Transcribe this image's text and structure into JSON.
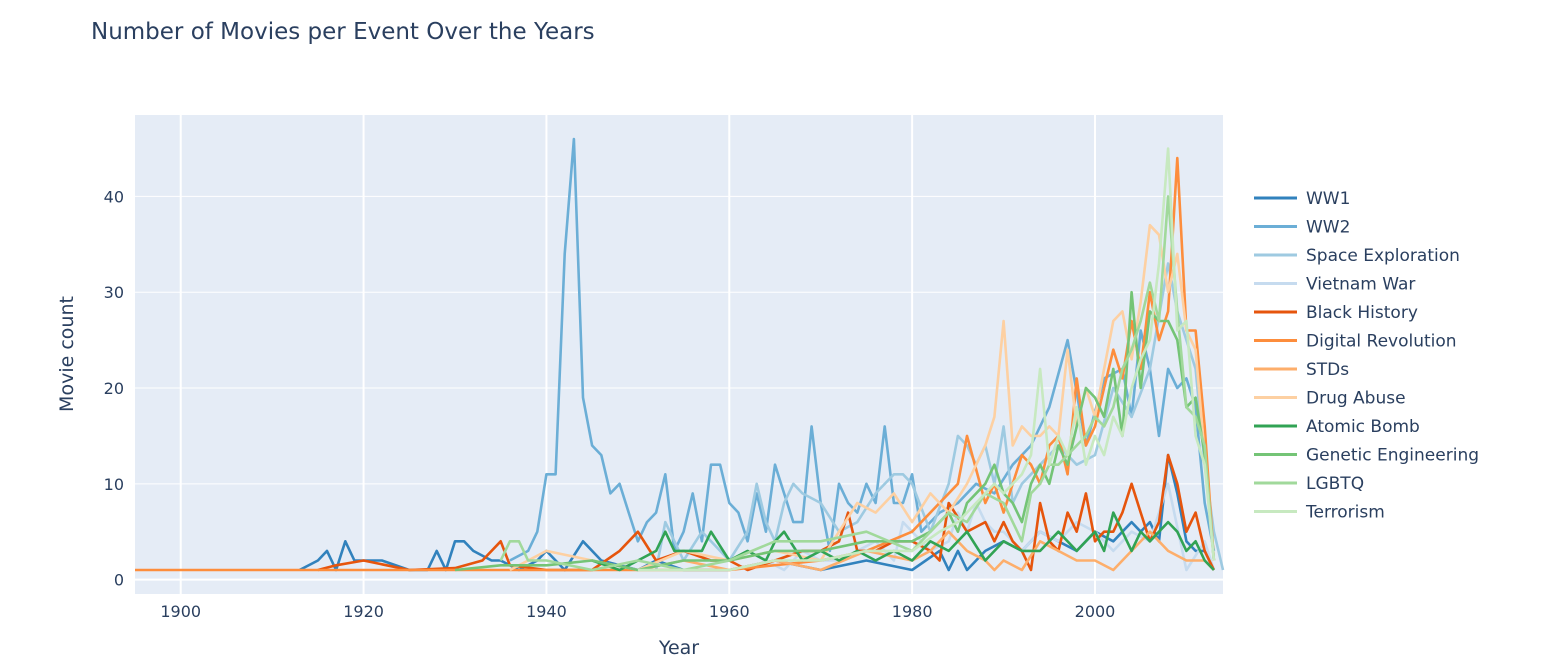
{
  "chart_data": {
    "type": "line",
    "title": "Number of Movies per Event Over the Years",
    "xlabel": "Year",
    "ylabel": "Movie count",
    "xlim": [
      1895,
      2014
    ],
    "ylim": [
      -1.5,
      48.5
    ],
    "x_ticks": [
      1900,
      1920,
      1940,
      1960,
      1980,
      2000
    ],
    "y_ticks": [
      0,
      10,
      20,
      30,
      40
    ],
    "grid": true,
    "legend_position": "right",
    "plot_bg": "#e5ecf6",
    "series": [
      {
        "name": "WW1",
        "color": "#3182bd",
        "x": [
          1913,
          1915,
          1916,
          1917,
          1918,
          1919,
          1920,
          1921,
          1922,
          1925,
          1927,
          1928,
          1929,
          1930,
          1931,
          1932,
          1934,
          1935,
          1937,
          1939,
          1940,
          1942,
          1944,
          1946,
          1950,
          1952,
          1955,
          1960,
          1965,
          1970,
          1975,
          1980,
          1983,
          1984,
          1985,
          1986,
          1987,
          1988,
          1990,
          1992,
          1994,
          1996,
          1998,
          2000,
          2002,
          2003,
          2004,
          2005,
          2006,
          2007,
          2008,
          2009,
          2010,
          2011,
          2012,
          2013
        ],
        "y": [
          1,
          2,
          3,
          1,
          4,
          2,
          2,
          2,
          2,
          1,
          1,
          3,
          1,
          4,
          4,
          3,
          2,
          2,
          1,
          2,
          3,
          1,
          4,
          2,
          1,
          2,
          1,
          1,
          2,
          1,
          2,
          1,
          3,
          1,
          3,
          1,
          2,
          3,
          4,
          3,
          5,
          4,
          3,
          5,
          4,
          5,
          6,
          5,
          6,
          4,
          13,
          9,
          4,
          3,
          3,
          1
        ]
      },
      {
        "name": "WW2",
        "color": "#6baed6",
        "x": [
          1936,
          1938,
          1939,
          1940,
          1941,
          1942,
          1943,
          1944,
          1945,
          1946,
          1947,
          1948,
          1949,
          1950,
          1951,
          1952,
          1953,
          1954,
          1955,
          1956,
          1957,
          1958,
          1959,
          1960,
          1961,
          1962,
          1963,
          1964,
          1965,
          1966,
          1967,
          1968,
          1969,
          1970,
          1971,
          1972,
          1973,
          1974,
          1975,
          1976,
          1977,
          1978,
          1979,
          1980,
          1981,
          1982,
          1983,
          1985,
          1987,
          1989,
          1991,
          1993,
          1995,
          1997,
          1999,
          2001,
          2003,
          2004,
          2005,
          2006,
          2007,
          2008,
          2009,
          2010,
          2011,
          2012,
          2013
        ],
        "y": [
          2,
          3,
          5,
          11,
          11,
          34,
          46,
          19,
          14,
          13,
          9,
          10,
          7,
          4,
          6,
          7,
          11,
          3,
          5,
          9,
          4,
          12,
          12,
          8,
          7,
          4,
          9,
          5,
          12,
          9,
          6,
          6,
          16,
          8,
          3,
          10,
          8,
          7,
          10,
          8,
          16,
          8,
          8,
          11,
          5,
          6,
          7,
          8,
          10,
          9,
          12,
          14,
          18,
          25,
          14,
          21,
          22,
          17,
          26,
          22,
          15,
          22,
          20,
          21,
          18,
          8,
          3
        ]
      },
      {
        "name": "Space Exploration",
        "color": "#9ecae1",
        "x": [
          1952,
          1953,
          1955,
          1957,
          1960,
          1962,
          1963,
          1964,
          1965,
          1966,
          1967,
          1968,
          1970,
          1972,
          1974,
          1976,
          1978,
          1979,
          1980,
          1982,
          1984,
          1985,
          1986,
          1987,
          1988,
          1989,
          1990,
          1991,
          1992,
          1994,
          1996,
          1998,
          2000,
          2002,
          2004,
          2006,
          2008,
          2009,
          2010,
          2011,
          2012,
          2013,
          2014
        ],
        "y": [
          1,
          6,
          2,
          5,
          2,
          5,
          10,
          6,
          4,
          8,
          10,
          9,
          8,
          5,
          6,
          9,
          11,
          11,
          10,
          5,
          10,
          15,
          14,
          12,
          14,
          10,
          16,
          8,
          10,
          12,
          14,
          12,
          13,
          20,
          17,
          22,
          33,
          28,
          25,
          22,
          12,
          5,
          1
        ]
      },
      {
        "name": "Vietnam War",
        "color": "#c6dbef",
        "x": [
          1962,
          1964,
          1966,
          1968,
          1970,
          1972,
          1974,
          1976,
          1978,
          1979,
          1980,
          1982,
          1984,
          1985,
          1986,
          1987,
          1988,
          1989,
          1990,
          1992,
          1994,
          1996,
          1998,
          2000,
          2002,
          2004,
          2006,
          2008,
          2010,
          2012,
          2013
        ],
        "y": [
          1,
          2,
          1,
          3,
          2,
          2,
          3,
          4,
          2,
          6,
          5,
          3,
          4,
          7,
          5,
          8,
          6,
          5,
          5,
          3,
          5,
          4,
          6,
          5,
          3,
          5,
          4,
          10,
          1,
          4,
          1
        ]
      },
      {
        "name": "Black History",
        "color": "#e6550d",
        "x": [
          1915,
          1917,
          1920,
          1925,
          1930,
          1933,
          1935,
          1936,
          1940,
          1945,
          1948,
          1950,
          1952,
          1955,
          1958,
          1960,
          1962,
          1965,
          1968,
          1970,
          1972,
          1973,
          1974,
          1976,
          1978,
          1980,
          1982,
          1983,
          1984,
          1986,
          1988,
          1989,
          1990,
          1991,
          1992,
          1993,
          1994,
          1995,
          1996,
          1997,
          1998,
          1999,
          2000,
          2001,
          2002,
          2003,
          2004,
          2005,
          2006,
          2007,
          2008,
          2009,
          2010,
          2011,
          2012,
          2013
        ],
        "y": [
          1,
          1.5,
          2,
          1,
          1.2,
          2,
          4,
          1.5,
          1,
          1,
          3,
          5,
          2,
          3,
          2,
          2,
          1,
          2,
          3,
          3,
          4,
          7,
          3,
          3,
          4,
          4,
          3,
          2,
          8,
          5,
          6,
          4,
          6,
          4,
          3,
          1,
          8,
          4,
          3,
          7,
          5,
          9,
          4,
          5,
          5,
          7,
          10,
          7,
          4,
          6,
          13,
          10,
          5,
          7,
          3,
          1
        ]
      },
      {
        "name": "Digital Revolution",
        "color": "#fd8d3c",
        "x": [
          1895,
          1913,
          1920,
          1930,
          1940,
          1950,
          1960,
          1970,
          1975,
          1980,
          1985,
          1986,
          1988,
          1989,
          1990,
          1991,
          1992,
          1993,
          1994,
          1995,
          1996,
          1997,
          1998,
          1999,
          2000,
          2001,
          2002,
          2003,
          2004,
          2005,
          2006,
          2007,
          2008,
          2009,
          2010,
          2011,
          2012,
          2013
        ],
        "y": [
          1,
          1,
          1,
          1,
          1,
          1,
          1,
          2,
          3,
          5,
          10,
          15,
          8,
          10,
          7,
          10,
          13,
          12,
          10,
          14,
          15,
          11,
          21,
          14,
          16,
          20,
          24,
          21,
          27,
          22,
          30,
          25,
          28,
          44,
          26,
          26,
          16,
          2
        ]
      },
      {
        "name": "STDs",
        "color": "#fdae6b",
        "x": [
          1950,
          1955,
          1960,
          1965,
          1970,
          1975,
          1980,
          1982,
          1984,
          1986,
          1988,
          1989,
          1990,
          1992,
          1994,
          1996,
          1998,
          2000,
          2002,
          2004,
          2006,
          2008,
          2010,
          2012,
          2013
        ],
        "y": [
          1,
          2,
          1,
          2,
          1,
          3,
          2,
          3,
          5,
          3,
          2,
          1,
          2,
          1,
          4,
          3,
          2,
          2,
          1,
          3,
          5,
          3,
          2,
          2,
          1
        ]
      },
      {
        "name": "Drug Abuse",
        "color": "#fdd0a2",
        "x": [
          1936,
          1938,
          1940,
          1945,
          1950,
          1955,
          1960,
          1965,
          1970,
          1972,
          1974,
          1976,
          1978,
          1980,
          1982,
          1984,
          1986,
          1988,
          1989,
          1990,
          1991,
          1992,
          1993,
          1994,
          1995,
          1996,
          1997,
          1998,
          1999,
          2000,
          2001,
          2002,
          2003,
          2004,
          2005,
          2006,
          2007,
          2008,
          2009,
          2010,
          2011,
          2012,
          2013
        ],
        "y": [
          1,
          2,
          3,
          2,
          1,
          3,
          2,
          3,
          2,
          5,
          8,
          7,
          9,
          6,
          9,
          7,
          10,
          14,
          17,
          27,
          14,
          16,
          15,
          15,
          16,
          15,
          24,
          16,
          20,
          17,
          22,
          27,
          28,
          23,
          29,
          37,
          36,
          30,
          34,
          26,
          24,
          13,
          2
        ]
      },
      {
        "name": "Atomic Bomb",
        "color": "#31a354",
        "x": [
          1945,
          1948,
          1950,
          1952,
          1953,
          1954,
          1955,
          1956,
          1957,
          1958,
          1960,
          1962,
          1964,
          1965,
          1966,
          1968,
          1970,
          1972,
          1974,
          1976,
          1978,
          1980,
          1982,
          1984,
          1986,
          1988,
          1990,
          1992,
          1994,
          1996,
          1998,
          2000,
          2001,
          2002,
          2003,
          2004,
          2005,
          2006,
          2007,
          2008,
          2009,
          2010,
          2011,
          2012,
          2013
        ],
        "y": [
          2,
          1,
          2,
          3,
          5,
          3,
          3,
          3,
          3,
          5,
          2,
          3,
          2,
          4,
          5,
          2,
          3,
          2,
          3,
          2,
          3,
          2,
          4,
          3,
          5,
          2,
          4,
          3,
          3,
          5,
          3,
          5,
          3,
          7,
          5,
          3,
          5,
          4,
          5,
          6,
          5,
          3,
          4,
          2,
          1
        ]
      },
      {
        "name": "Genetic Engineering",
        "color": "#74c476",
        "x": [
          1930,
          1935,
          1940,
          1945,
          1950,
          1955,
          1960,
          1965,
          1970,
          1975,
          1980,
          1982,
          1984,
          1985,
          1986,
          1988,
          1989,
          1990,
          1991,
          1992,
          1993,
          1994,
          1995,
          1996,
          1997,
          1998,
          1999,
          2000,
          2001,
          2002,
          2003,
          2004,
          2005,
          2006,
          2007,
          2008,
          2009,
          2010,
          2011,
          2012,
          2013
        ],
        "y": [
          1,
          1.5,
          1.5,
          2,
          1,
          2,
          2,
          3,
          3,
          4,
          4,
          5,
          7,
          5,
          8,
          10,
          12,
          9,
          8,
          6,
          10,
          12,
          10,
          14,
          12,
          16,
          20,
          19,
          17,
          22,
          15,
          30,
          20,
          28,
          27,
          27,
          25,
          18,
          19,
          13,
          2
        ]
      },
      {
        "name": "LGBTQ",
        "color": "#a1d99b",
        "x": [
          1935,
          1936,
          1937,
          1938,
          1940,
          1945,
          1950,
          1955,
          1960,
          1965,
          1970,
          1975,
          1980,
          1982,
          1984,
          1986,
          1988,
          1990,
          1992,
          1993,
          1994,
          1995,
          1996,
          1997,
          1998,
          1999,
          2000,
          2001,
          2002,
          2003,
          2004,
          2005,
          2006,
          2007,
          2008,
          2009,
          2010,
          2011,
          2012,
          2013
        ],
        "y": [
          2,
          4,
          4,
          2,
          2,
          1,
          2,
          1,
          2,
          4,
          4,
          5,
          3,
          5,
          7,
          6,
          9,
          8,
          4,
          9,
          10,
          12,
          12,
          13,
          14,
          15,
          17,
          16,
          18,
          22,
          24,
          27,
          31,
          27,
          40,
          28,
          18,
          17,
          14,
          2
        ]
      },
      {
        "name": "Terrorism",
        "color": "#c7e9c0",
        "x": [
          1950,
          1955,
          1960,
          1965,
          1970,
          1975,
          1980,
          1983,
          1985,
          1987,
          1989,
          1990,
          1991,
          1992,
          1993,
          1994,
          1995,
          1996,
          1997,
          1998,
          1999,
          2000,
          2001,
          2002,
          2003,
          2004,
          2005,
          2006,
          2007,
          2008,
          2009,
          2010,
          2011,
          2012,
          2013
        ],
        "y": [
          1,
          1,
          1,
          2,
          2,
          3,
          3,
          5,
          6,
          8,
          10,
          9,
          10,
          11,
          13,
          22,
          12,
          15,
          13,
          18,
          12,
          15,
          13,
          17,
          15,
          20,
          23,
          25,
          33,
          45,
          26,
          27,
          15,
          12,
          2
        ]
      }
    ]
  }
}
